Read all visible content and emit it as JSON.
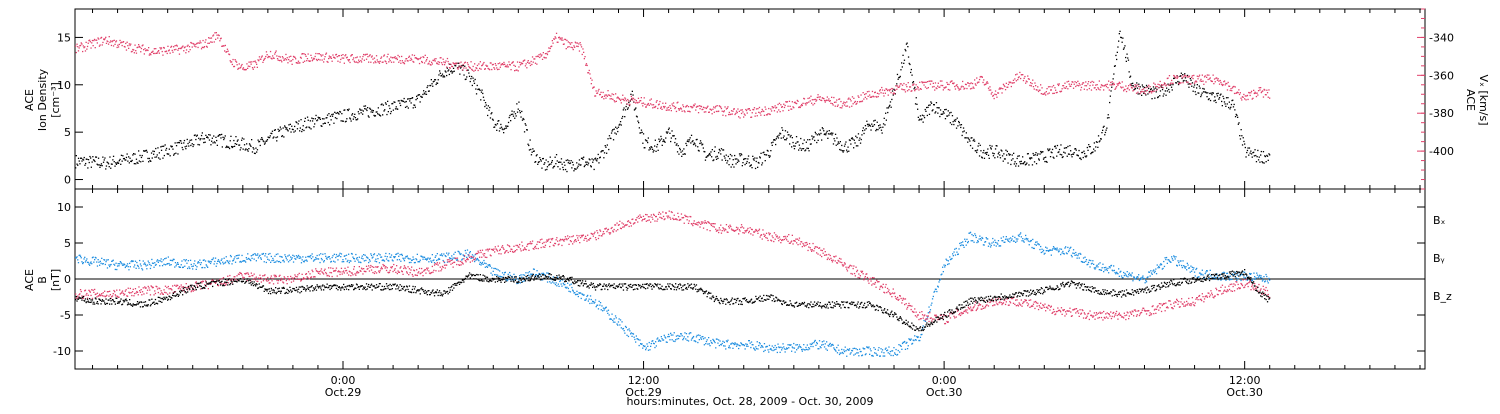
{
  "figure": {
    "xlabel": "hours:minutes, Oct. 28, 2009 - Oct. 30, 2009",
    "xticks": [
      {
        "hours": 24,
        "time": "0:00",
        "date": "Oct.29"
      },
      {
        "hours": 36,
        "time": "12:00",
        "date": "Oct.29"
      },
      {
        "hours": 48,
        "time": "0:00",
        "date": "Oct.30"
      },
      {
        "hours": 60,
        "time": "12:00",
        "date": "Oct.30"
      }
    ],
    "xlim": [
      13.3,
      67.2
    ],
    "minor_tick_step_hours": 1
  },
  "colors": {
    "black": "#000000",
    "pink": "#e0406a",
    "blue": "#1e8ee0"
  },
  "chart_data": [
    {
      "type": "scatter",
      "panel": "top",
      "ylabel_left": [
        "ACE",
        "Ion Density",
        "[cm⁻³]"
      ],
      "ylabel_right": [
        "ACE",
        "Vₓ [km/s]"
      ],
      "ylim_left": [
        -1,
        18
      ],
      "yticks_left": [
        0,
        5,
        10,
        15
      ],
      "ylim_right": [
        -420,
        -325
      ],
      "yticks_right": [
        -400,
        -380,
        -360,
        -340
      ],
      "series": [
        {
          "axis": "left",
          "color": "black",
          "x": [
            13.3,
            14.5,
            15.5,
            16.5,
            17.5,
            18.5,
            19.5,
            20.5,
            21.5,
            22.5,
            23.5,
            24.5,
            25.5,
            26.5,
            27.0,
            27.5,
            28.0,
            28.5,
            29.0,
            29.5,
            30.0,
            30.5,
            31.0,
            31.5,
            32.0,
            32.5,
            33.0,
            33.5,
            34.0,
            34.5,
            35.0,
            35.5,
            36.0,
            36.5,
            37.0,
            37.5,
            38.0,
            38.5,
            39.0,
            39.5,
            40.0,
            40.5,
            41.0,
            41.5,
            42.0,
            42.5,
            43.0,
            43.5,
            44.0,
            44.5,
            45.0,
            45.5,
            46.0,
            46.5,
            47.0,
            47.5,
            48.0,
            48.5,
            49.0,
            49.5,
            50.0,
            50.5,
            51.0,
            51.5,
            52.0,
            52.5,
            53.0,
            53.5,
            54.0,
            54.5,
            55.0,
            55.5,
            56.0,
            56.5,
            57.0,
            57.5,
            58.0,
            58.5,
            59.0,
            59.5,
            60.0,
            60.5,
            61.0
          ],
          "y": [
            2.0,
            1.8,
            2.2,
            2.8,
            3.5,
            4.5,
            4.0,
            3.5,
            5.0,
            6.0,
            6.5,
            7.0,
            7.5,
            8.0,
            8.5,
            10.0,
            11.5,
            12.0,
            11.0,
            9.0,
            6.0,
            5.5,
            8.0,
            3.0,
            1.5,
            2.0,
            1.5,
            2.0,
            1.5,
            3.5,
            6.0,
            9.0,
            4.0,
            3.5,
            5.0,
            3.0,
            4.5,
            2.5,
            3.0,
            2.0,
            2.2,
            1.8,
            3.0,
            5.0,
            4.0,
            3.5,
            5.0,
            4.5,
            3.5,
            4.0,
            6.0,
            5.5,
            9.5,
            14.0,
            6.0,
            8.0,
            7.0,
            6.0,
            4.0,
            3.0,
            3.0,
            2.5,
            2.0,
            2.2,
            2.5,
            3.0,
            3.2,
            2.8,
            3.5,
            6.0,
            16.0,
            10.0,
            9.5,
            9.0,
            10.0,
            11.0,
            9.5,
            9.0,
            8.5,
            8.0,
            3.0,
            2.5,
            2.5
          ]
        },
        {
          "axis": "right",
          "color": "pink",
          "x": [
            13.3,
            14.0,
            14.5,
            15.5,
            16.5,
            17.5,
            18.5,
            19.0,
            19.5,
            20.0,
            20.5,
            21.0,
            21.5,
            22.0,
            22.5,
            23.0,
            24.0,
            25.0,
            26.0,
            27.0,
            28.0,
            29.0,
            30.0,
            31.0,
            32.0,
            32.5,
            33.0,
            33.5,
            34.0,
            34.5,
            35.0,
            36.0,
            37.0,
            38.0,
            39.0,
            40.0,
            41.0,
            42.0,
            43.0,
            44.0,
            45.0,
            46.0,
            47.0,
            48.0,
            49.0,
            49.5,
            50.0,
            51.0,
            52.0,
            53.0,
            54.0,
            55.0,
            56.0,
            57.0,
            58.0,
            59.0,
            60.0,
            60.5,
            61.0
          ],
          "y": [
            -346,
            -343,
            -341,
            -345,
            -347,
            -346,
            -343,
            -338,
            -352,
            -356,
            -354,
            -348,
            -350,
            -352,
            -350,
            -350,
            -351,
            -351,
            -351,
            -351,
            -353,
            -355,
            -355,
            -355,
            -350,
            -340,
            -344,
            -345,
            -368,
            -370,
            -372,
            -374,
            -376,
            -377,
            -378,
            -380,
            -378,
            -375,
            -372,
            -375,
            -370,
            -367,
            -365,
            -365,
            -365,
            -362,
            -370,
            -360,
            -368,
            -365,
            -365,
            -365,
            -368,
            -362,
            -362,
            -362,
            -372,
            -368,
            -370
          ]
        }
      ]
    },
    {
      "type": "scatter",
      "panel": "bottom",
      "ylabel_left": [
        "ACE",
        "B",
        "[nT]"
      ],
      "ylim": [
        -12.5,
        12.5
      ],
      "yticks": [
        -10,
        -5,
        0,
        5,
        10
      ],
      "zero_line": true,
      "legend_position": "right",
      "series": [
        {
          "name": "Bₓ",
          "color": "black",
          "x": [
            13.3,
            14.0,
            15.0,
            16.0,
            17.0,
            18.0,
            19.0,
            20.0,
            21.0,
            22.0,
            23.0,
            24.0,
            25.0,
            26.0,
            27.0,
            28.0,
            29.0,
            30.0,
            31.0,
            32.0,
            33.0,
            34.0,
            35.0,
            36.0,
            37.0,
            38.0,
            39.0,
            40.0,
            41.0,
            42.0,
            43.0,
            44.0,
            45.0,
            46.0,
            47.0,
            48.0,
            49.0,
            50.0,
            51.0,
            52.0,
            53.0,
            54.0,
            55.0,
            56.0,
            57.0,
            58.0,
            59.0,
            60.0,
            60.5,
            61.0
          ],
          "y": [
            -2.5,
            -3.0,
            -3.0,
            -3.5,
            -2.5,
            -1.0,
            -0.5,
            0.0,
            -1.5,
            -1.5,
            -1.0,
            -1.0,
            -1.0,
            -1.0,
            -1.5,
            -2.0,
            0.5,
            0.0,
            0.0,
            0.5,
            0.0,
            -1.0,
            -1.0,
            -1.0,
            -1.0,
            -1.0,
            -3.0,
            -3.0,
            -2.5,
            -3.5,
            -3.5,
            -3.5,
            -3.5,
            -5.0,
            -7.0,
            -5.0,
            -3.0,
            -2.5,
            -2.0,
            -1.5,
            -0.5,
            -1.5,
            -2.0,
            -1.5,
            -0.5,
            0.0,
            0.5,
            1.0,
            -1.5,
            -3.0
          ]
        },
        {
          "name": "Bᵧ",
          "color": "blue",
          "x": [
            13.3,
            14.0,
            15.0,
            16.0,
            17.0,
            18.0,
            19.0,
            20.0,
            21.0,
            22.0,
            23.0,
            24.0,
            25.0,
            26.0,
            27.0,
            28.0,
            29.0,
            30.0,
            31.0,
            31.5,
            32.0,
            33.0,
            34.0,
            35.0,
            36.0,
            37.0,
            38.0,
            39.0,
            40.0,
            41.0,
            42.0,
            43.0,
            44.0,
            45.0,
            46.0,
            47.0,
            48.0,
            49.0,
            50.0,
            51.0,
            52.0,
            53.0,
            54.0,
            55.0,
            56.0,
            57.0,
            58.0,
            59.0,
            60.0,
            61.0
          ],
          "y": [
            3.0,
            2.5,
            2.0,
            2.0,
            2.5,
            2.0,
            2.5,
            3.0,
            3.0,
            3.0,
            3.0,
            3.0,
            3.0,
            3.0,
            3.0,
            3.0,
            3.5,
            1.0,
            0.0,
            1.0,
            0.5,
            -1.0,
            -3.0,
            -6.0,
            -9.5,
            -8.0,
            -8.0,
            -9.0,
            -9.0,
            -9.5,
            -9.5,
            -9.0,
            -10.0,
            -10.0,
            -10.0,
            -8.0,
            2.0,
            6.0,
            5.0,
            6.0,
            4.0,
            4.0,
            2.0,
            1.0,
            0.0,
            3.0,
            1.0,
            0.5,
            0.5,
            0.0
          ]
        },
        {
          "name": "B_z",
          "color": "pink",
          "x": [
            13.3,
            14.0,
            15.0,
            16.0,
            17.0,
            18.0,
            19.0,
            20.0,
            21.0,
            22.0,
            23.0,
            24.0,
            25.0,
            26.0,
            27.0,
            28.0,
            29.0,
            30.0,
            31.0,
            32.0,
            33.0,
            34.0,
            35.0,
            36.0,
            37.0,
            38.0,
            39.0,
            40.0,
            41.0,
            42.0,
            43.0,
            44.0,
            45.0,
            46.0,
            47.0,
            48.0,
            49.0,
            50.0,
            51.0,
            52.0,
            53.0,
            54.0,
            55.0,
            56.0,
            57.0,
            58.0,
            59.0,
            60.0,
            61.0
          ],
          "y": [
            -2.0,
            -2.0,
            -2.0,
            -1.5,
            -1.5,
            -1.0,
            -0.5,
            0.5,
            0.0,
            0.0,
            1.0,
            1.0,
            1.5,
            1.5,
            1.0,
            2.0,
            3.0,
            4.0,
            4.5,
            5.0,
            5.5,
            6.0,
            7.5,
            8.5,
            9.0,
            8.0,
            7.0,
            7.0,
            6.0,
            5.5,
            4.0,
            2.0,
            0.0,
            -2.0,
            -5.0,
            -5.5,
            -4.0,
            -3.0,
            -3.0,
            -4.0,
            -4.5,
            -5.0,
            -5.0,
            -4.5,
            -3.5,
            -3.0,
            -1.5,
            -0.5,
            -2.0
          ]
        }
      ]
    }
  ]
}
